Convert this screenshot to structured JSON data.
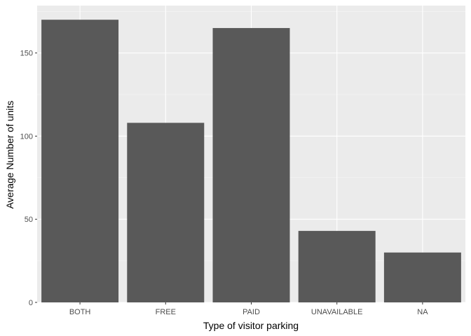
{
  "chart_data": {
    "type": "bar",
    "categories": [
      "BOTH",
      "FREE",
      "PAID",
      "UNAVAILABLE",
      "NA"
    ],
    "values": [
      170,
      108,
      165,
      43,
      30
    ],
    "title": "",
    "xlabel": "Type of visitor parking",
    "ylabel": "Average Number of units",
    "ylim": [
      0,
      178.5
    ],
    "yticks": [
      0,
      50,
      100,
      150
    ],
    "grid": true,
    "legend": "none",
    "colors": {
      "bar": "#595959",
      "panel": "#ebebeb",
      "grid_major": "#ffffff",
      "grid_minor": "#f5f5f5"
    }
  }
}
